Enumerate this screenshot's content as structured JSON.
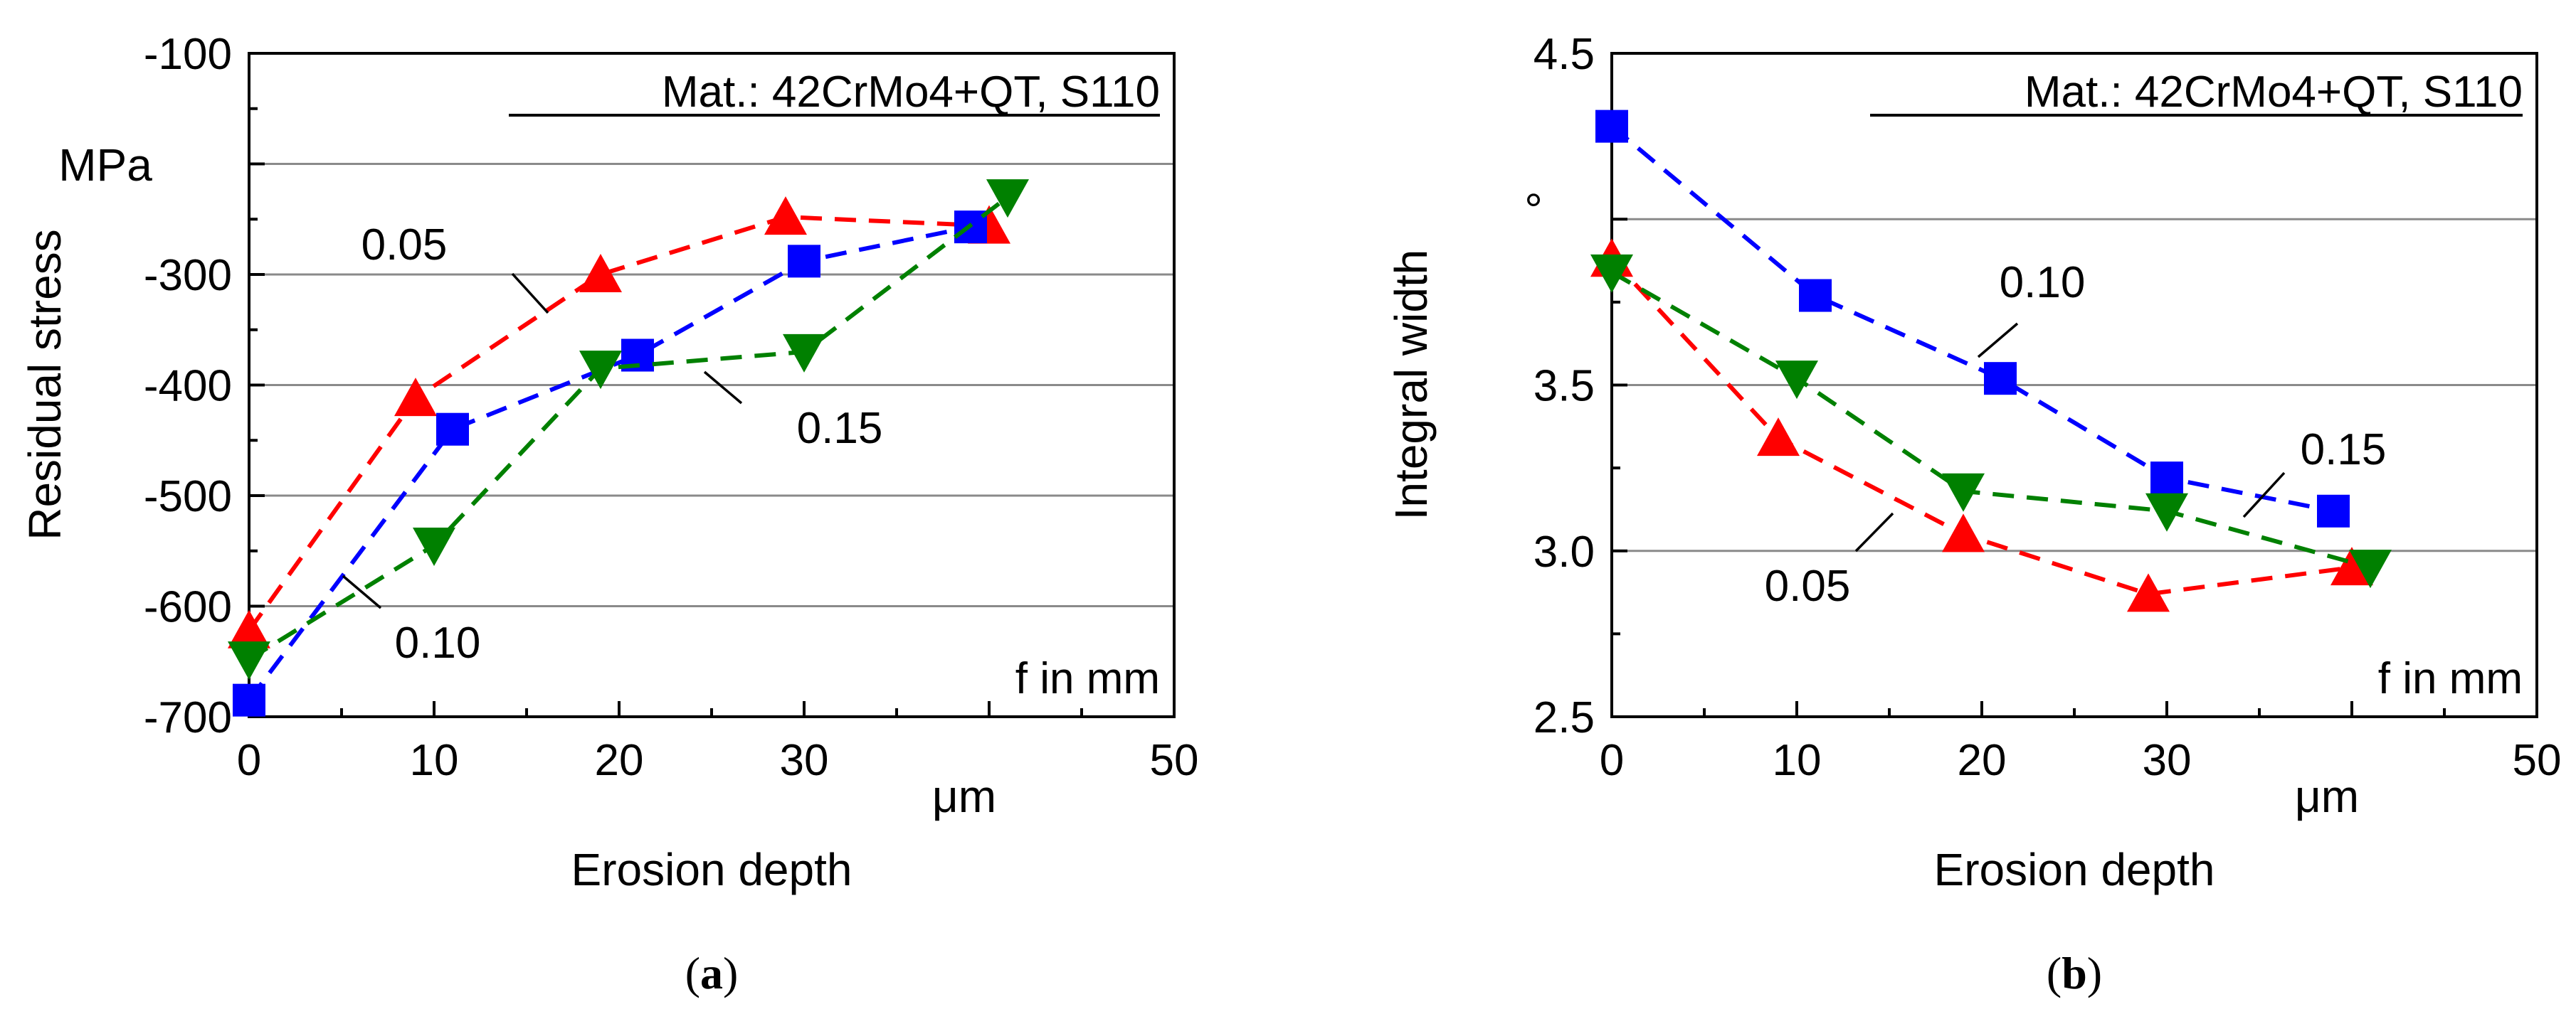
{
  "colors": {
    "0.05": "#ff0000",
    "0.10": "#0000ff",
    "0.15": "#008000"
  },
  "chart_data": [
    {
      "type": "line",
      "panel_label": "(a)",
      "panel_letter": "a",
      "title": "",
      "annotation": "Mat.: 42CrMo4+QT, S110",
      "legend_title": "f in mm",
      "xlabel": "Erosion depth",
      "x_unit": "μm",
      "ylabel": "Residual stress",
      "y_unit": "MPa",
      "xlim": [
        0,
        50
      ],
      "ylim": [
        -700,
        -100
      ],
      "x_ticks": [
        0,
        10,
        20,
        30,
        50
      ],
      "x_tick_labels": [
        "0",
        "10",
        "20",
        "30",
        "50"
      ],
      "y_ticks": [
        -700,
        -600,
        -500,
        -400,
        -300,
        -100
      ],
      "y_tick_labels": [
        "-700",
        "-600",
        "-500",
        "-400",
        "-300",
        "-100"
      ],
      "grid": true,
      "series": [
        {
          "name": "0.05",
          "marker": "triangle-up",
          "x": [
            0,
            9,
            19,
            29,
            40
          ],
          "y": [
            -622,
            -412,
            -300,
            -248,
            -256
          ]
        },
        {
          "name": "0.10",
          "marker": "square",
          "x": [
            0,
            11,
            21,
            30,
            39
          ],
          "y": [
            -685,
            -440,
            -373,
            -288,
            -257
          ]
        },
        {
          "name": "0.15",
          "marker": "triangle-down",
          "x": [
            0,
            10,
            19,
            30,
            41
          ],
          "y": [
            -648,
            -545,
            -385,
            -370,
            -230
          ]
        }
      ]
    },
    {
      "type": "line",
      "panel_label": "(b)",
      "panel_letter": "b",
      "title": "",
      "annotation": "Mat.: 42CrMo4+QT, S110",
      "legend_title": "f in mm",
      "xlabel": "Erosion depth",
      "x_unit": "μm",
      "ylabel": "Integral width",
      "y_unit": "°",
      "xlim": [
        0,
        50
      ],
      "ylim": [
        2.5,
        4.5
      ],
      "x_ticks": [
        0,
        10,
        20,
        30,
        50
      ],
      "x_tick_labels": [
        "0",
        "10",
        "20",
        "30",
        "50"
      ],
      "y_ticks": [
        2.5,
        3.0,
        3.5,
        4.5
      ],
      "y_tick_labels": [
        "2.5",
        "3.0",
        "3.5",
        "4.5"
      ],
      "grid": true,
      "series": [
        {
          "name": "0.05",
          "marker": "triangle-up",
          "x": [
            0,
            9,
            19,
            29,
            40
          ],
          "y": [
            3.88,
            3.34,
            3.05,
            2.87,
            2.95
          ]
        },
        {
          "name": "0.10",
          "marker": "square",
          "x": [
            0,
            11,
            21,
            30,
            39
          ],
          "y": [
            4.28,
            3.77,
            3.52,
            3.22,
            3.12
          ]
        },
        {
          "name": "0.15",
          "marker": "triangle-down",
          "x": [
            0,
            10,
            19,
            30,
            41
          ],
          "y": [
            3.84,
            3.52,
            3.18,
            3.12,
            2.95
          ]
        }
      ]
    }
  ]
}
